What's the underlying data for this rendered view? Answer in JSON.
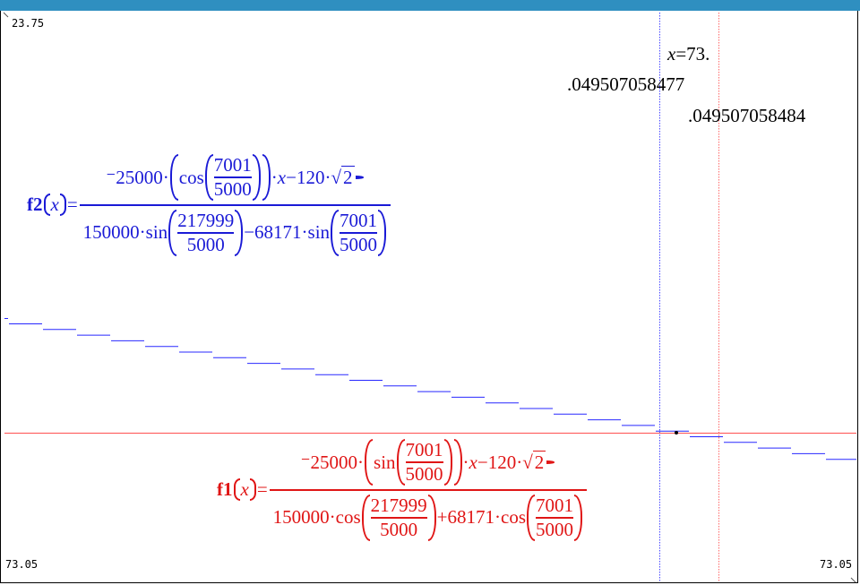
{
  "window": {
    "y_max": "23.75",
    "x_min": "73.05",
    "x_max": "73.05"
  },
  "trace": {
    "x_readout_var": "x",
    "x_readout_value": "=73.",
    "value1": ".049507058477",
    "value2": ".049507058484"
  },
  "f2": {
    "name": "f2",
    "var": "x",
    "num_coef": "⁻25000·",
    "num_func": "cos",
    "num_frac_num": "7001",
    "num_frac_den": "5000",
    "num_tail1": "·",
    "num_var": "x",
    "num_tail2": "−120·",
    "sqrt_arg": "2",
    "den_part1": "150000·",
    "den_func1": "sin",
    "den_frac1_num": "217999",
    "den_frac1_den": "5000",
    "den_mid": "−68171·",
    "den_func2": "sin",
    "den_frac2_num": "7001",
    "den_frac2_den": "5000",
    "color": "#1a1ad6"
  },
  "f1": {
    "name": "f1",
    "var": "x",
    "num_coef": "⁻25000·",
    "num_func": "sin",
    "num_frac_num": "7001",
    "num_frac_den": "5000",
    "num_tail1": "·",
    "num_var": "x",
    "num_tail2": "−120·",
    "sqrt_arg": "2",
    "den_part1": "150000·",
    "den_func1": "cos",
    "den_frac1_num": "217999",
    "den_frac1_den": "5000",
    "den_mid": "+68171·",
    "den_func2": "cos",
    "den_frac2_num": "7001",
    "den_frac2_den": "5000",
    "color": "#e01515"
  }
}
